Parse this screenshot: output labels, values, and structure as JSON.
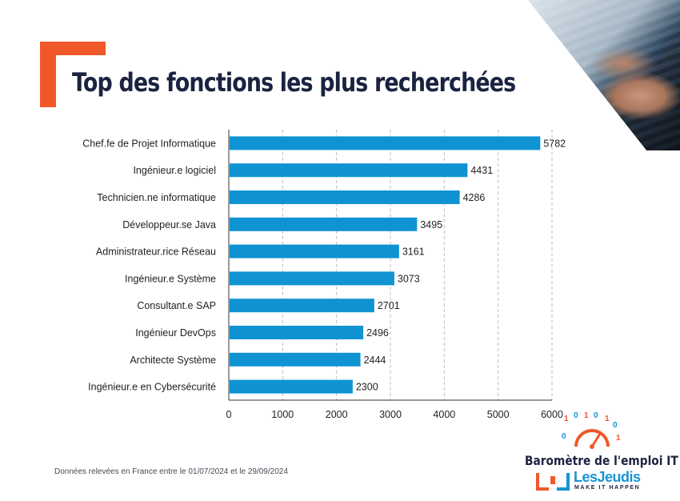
{
  "title": "Top des fonctions les plus recherchées",
  "footnote": "Données relevées en France entre le 01/07/2024 et le 29/09/2024",
  "brand": {
    "title": "Baromètre de l'emploi IT",
    "logo_name": "LesJeudis",
    "logo_tagline": "MAKE IT HAPPEN"
  },
  "colors": {
    "bar": "#0f93d3",
    "accent": "#f0582a",
    "title": "#1b2340",
    "logo": "#1694d4"
  },
  "chart_data": {
    "type": "bar",
    "orientation": "horizontal",
    "title": "Top des fonctions les plus recherchées",
    "xlabel": "",
    "ylabel": "",
    "categories": [
      "Chef.fe de Projet Informatique",
      "Ingénieur.e logiciel",
      "Technicien.ne informatique",
      "Développeur.se Java",
      "Administrateur.rice Réseau",
      "Ingénieur.e Système",
      "Consultant.e SAP",
      "Ingénieur DevOps",
      "Architecte Système",
      "Ingénieur.e en Cybersécurité"
    ],
    "values": [
      5782,
      4431,
      4286,
      3495,
      3161,
      3073,
      2701,
      2496,
      2444,
      2300
    ],
    "xlim": [
      0,
      6000
    ],
    "xticks": [
      0,
      1000,
      2000,
      3000,
      4000,
      5000,
      6000
    ],
    "grid": "vertical dashed",
    "data_labels": true
  }
}
